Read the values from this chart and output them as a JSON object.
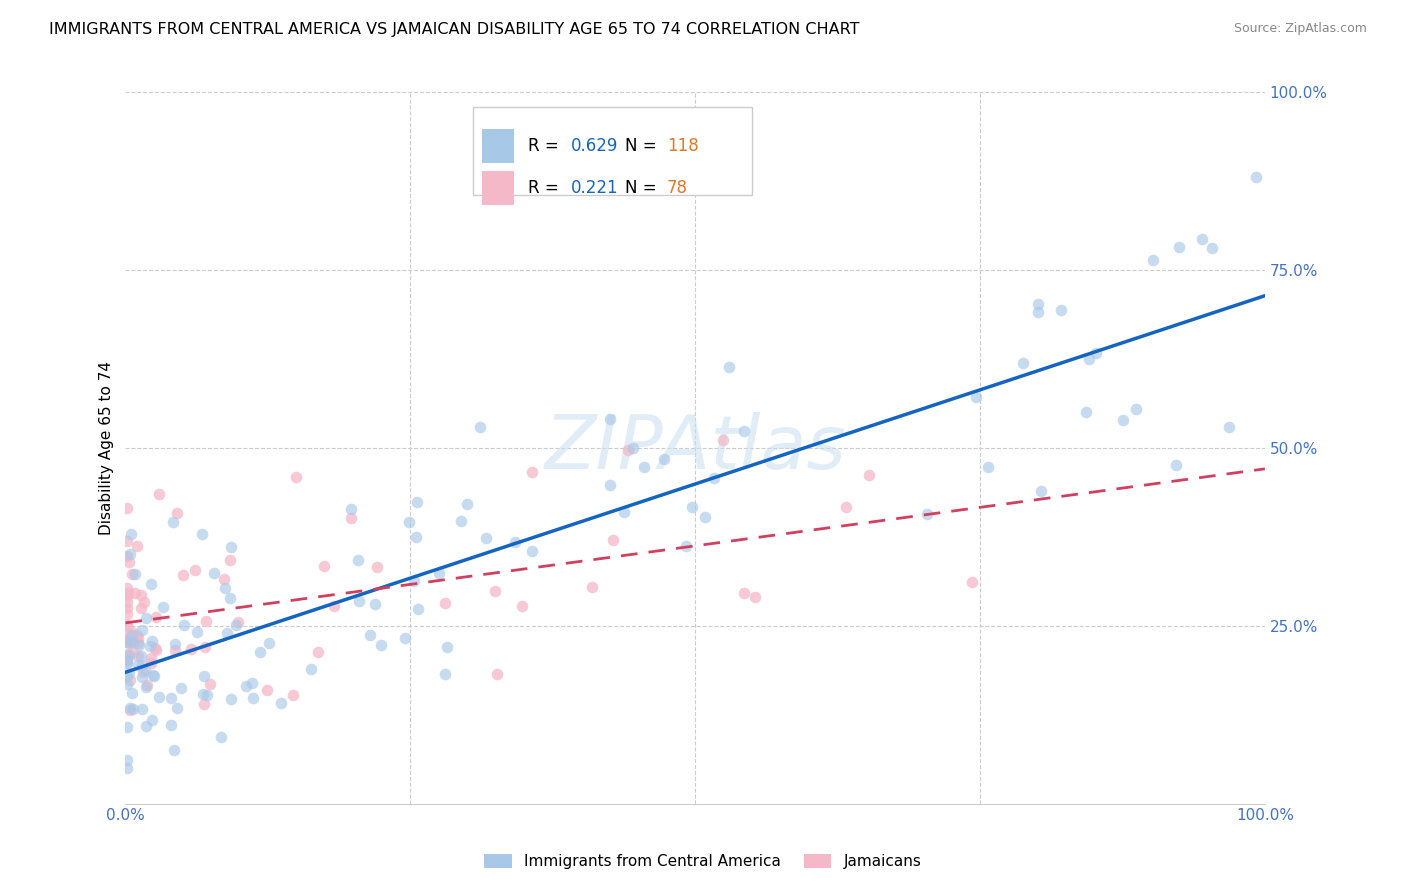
{
  "title": "IMMIGRANTS FROM CENTRAL AMERICA VS JAMAICAN DISABILITY AGE 65 TO 74 CORRELATION CHART",
  "source": "Source: ZipAtlas.com",
  "ylabel": "Disability Age 65 to 74",
  "watermark": "ZIPAtlas",
  "blue_R": 0.629,
  "blue_N": 118,
  "pink_R": 0.221,
  "pink_N": 78,
  "legend_label_blue": "Immigrants from Central America",
  "legend_label_pink": "Jamaicans",
  "blue_color": "#a8c8e8",
  "blue_line_color": "#1565C0",
  "pink_color": "#f4b8c8",
  "pink_line_color": "#d04060",
  "R_color": "#1565C0",
  "N_color": "#e07828",
  "tick_color": "#4472C4",
  "grid_color": "#cccccc",
  "blue_intercept": 0.18,
  "blue_slope": 0.52,
  "pink_intercept": 0.27,
  "pink_slope": 0.18
}
